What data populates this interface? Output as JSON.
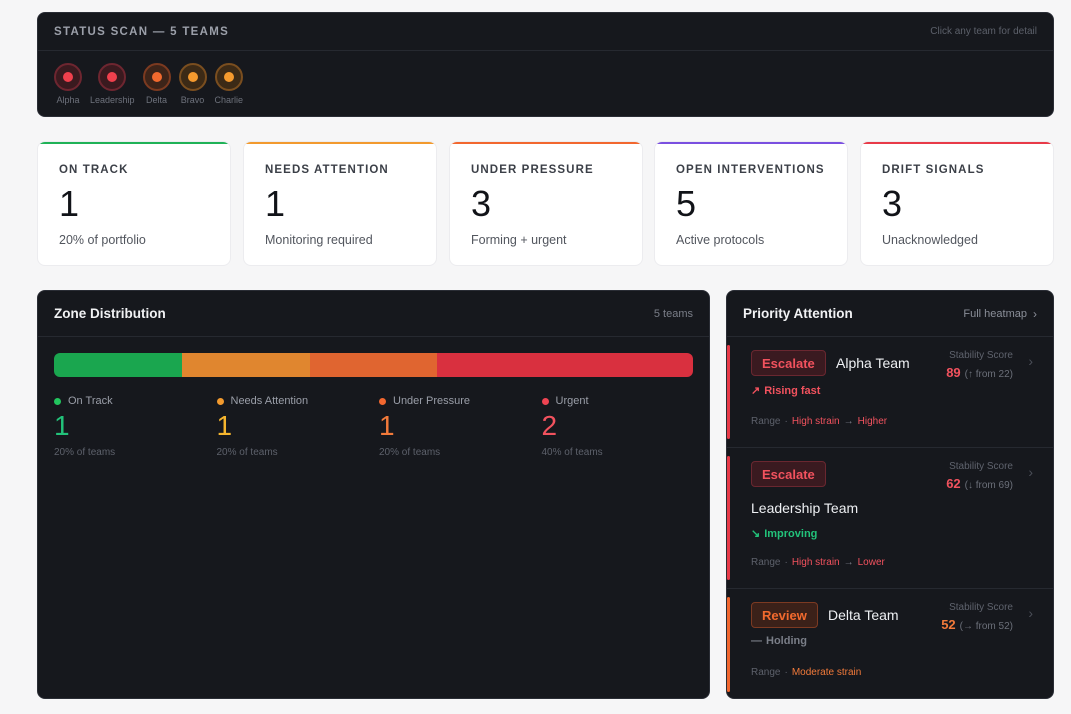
{
  "scan": {
    "title": "STATUS SCAN — 5 TEAMS",
    "hint": "Click any team for detail",
    "teams": [
      {
        "label": "Alpha",
        "status": "red"
      },
      {
        "label": "Leadership",
        "status": "red"
      },
      {
        "label": "Delta",
        "status": "orange"
      },
      {
        "label": "Bravo",
        "status": "amber"
      },
      {
        "label": "Charlie",
        "status": "amber"
      }
    ]
  },
  "cards": [
    {
      "title": "ON TRACK",
      "value": "1",
      "sub": "20% of portfolio",
      "color": "#1fb257"
    },
    {
      "title": "NEEDS ATTENTION",
      "value": "1",
      "sub": "Monitoring required",
      "color": "#f29a2e"
    },
    {
      "title": "UNDER PRESSURE",
      "value": "3",
      "sub": "Forming + urgent",
      "color": "#f2672f"
    },
    {
      "title": "OPEN INTERVENTIONS",
      "value": "5",
      "sub": "Active protocols",
      "color": "#7a4fe0"
    },
    {
      "title": "DRIFT SIGNALS",
      "value": "3",
      "sub": "Unacknowledged",
      "color": "#e83a48"
    }
  ],
  "zone": {
    "title": "Zone Distribution",
    "meta": "5 teams",
    "segments": [
      {
        "label": "On Track",
        "count": "1",
        "pct": "20% of teams",
        "fraction": 0.2,
        "color": "#1aa64f",
        "text_color": "#22c27a",
        "dot": "#22c55e"
      },
      {
        "label": "Needs Attention",
        "count": "1",
        "pct": "20% of teams",
        "fraction": 0.2,
        "color": "#e0862f",
        "text_color": "#f5b52e",
        "dot": "#f29a2e"
      },
      {
        "label": "Under Pressure",
        "count": "1",
        "pct": "20% of teams",
        "fraction": 0.2,
        "color": "#e06530",
        "text_color": "#f27a3a",
        "dot": "#f2672f"
      },
      {
        "label": "Urgent",
        "count": "2",
        "pct": "40% of teams",
        "fraction": 0.4,
        "color": "#d9303f",
        "text_color": "#f2525e",
        "dot": "#ef4452"
      }
    ]
  },
  "priority": {
    "title": "Priority Attention",
    "link": "Full heatmap",
    "items": [
      {
        "badge": "Escalate",
        "team": "Alpha Team",
        "trend": "Rising fast",
        "trend_icon": "rising-fast-icon",
        "stab_label": "Stability Score",
        "score": "89",
        "from": "(↑ from 22)",
        "range_label": "Range",
        "range_from": "High strain",
        "range_to": "Higher",
        "accent": "#e83a48"
      },
      {
        "badge": "Escalate",
        "team": "Leadership Team",
        "trend": "Improving",
        "trend_icon": "improving-icon",
        "stab_label": "Stability Score",
        "score": "62",
        "from": "(↓ from 69)",
        "range_label": "Range",
        "range_from": "High strain",
        "range_to": "Lower",
        "accent": "#e83a48"
      },
      {
        "badge": "Review",
        "team": "Delta Team",
        "trend": "Holding",
        "trend_icon": "holding-icon",
        "stab_label": "Stability Score",
        "score": "52",
        "from": "(→ from 52)",
        "range_label": "Range",
        "range_from": "Moderate strain",
        "accent": "#f2672f"
      }
    ]
  }
}
